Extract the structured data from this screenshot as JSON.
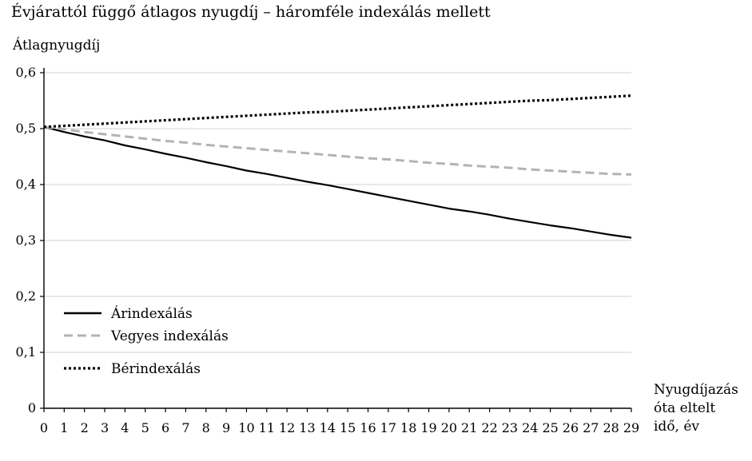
{
  "chart_data": {
    "type": "line",
    "title": "Évjárattól függő átlagos nyugdíj – háromféle indexálás mellett",
    "ylabel": "Átlagnyugdíj",
    "xlabel": [
      "Nyugdíjazás",
      "óta eltelt",
      "idő, év"
    ],
    "x": [
      0,
      1,
      2,
      3,
      4,
      5,
      6,
      7,
      8,
      9,
      10,
      11,
      12,
      13,
      14,
      15,
      16,
      17,
      18,
      19,
      20,
      21,
      22,
      23,
      24,
      25,
      26,
      27,
      28,
      29
    ],
    "ylim": [
      0,
      0.6
    ],
    "yticks": [
      0,
      0.1,
      0.2,
      0.3,
      0.4,
      0.5,
      0.6
    ],
    "ytick_labels": [
      "0",
      "0,1",
      "0,2",
      "0,3",
      "0,4",
      "0,5",
      "0,6"
    ],
    "grid": true,
    "legend_position": "bottom-left",
    "series": [
      {
        "name": "Árindexálás",
        "color": "#000000",
        "dash": "solid",
        "values": [
          0.503,
          0.494,
          0.486,
          0.479,
          0.47,
          0.463,
          0.455,
          0.448,
          0.44,
          0.433,
          0.425,
          0.419,
          0.412,
          0.405,
          0.399,
          0.392,
          0.385,
          0.378,
          0.371,
          0.364,
          0.357,
          0.352,
          0.346,
          0.339,
          0.333,
          0.327,
          0.322,
          0.316,
          0.31,
          0.305
        ]
      },
      {
        "name": "Vegyes indexálás",
        "color": "#b3b3b3",
        "dash": "dashed",
        "values": [
          0.503,
          0.499,
          0.494,
          0.49,
          0.486,
          0.482,
          0.478,
          0.475,
          0.471,
          0.468,
          0.465,
          0.462,
          0.459,
          0.456,
          0.453,
          0.45,
          0.447,
          0.445,
          0.442,
          0.439,
          0.437,
          0.434,
          0.432,
          0.43,
          0.427,
          0.425,
          0.423,
          0.421,
          0.419,
          0.418
        ]
      },
      {
        "name": "Bérindexálás",
        "color": "#000000",
        "dash": "dotted",
        "values": [
          0.503,
          0.505,
          0.507,
          0.509,
          0.511,
          0.513,
          0.515,
          0.517,
          0.519,
          0.521,
          0.523,
          0.525,
          0.527,
          0.529,
          0.53,
          0.532,
          0.534,
          0.536,
          0.538,
          0.54,
          0.542,
          0.544,
          0.546,
          0.548,
          0.55,
          0.551,
          0.553,
          0.555,
          0.557,
          0.559
        ]
      }
    ]
  }
}
